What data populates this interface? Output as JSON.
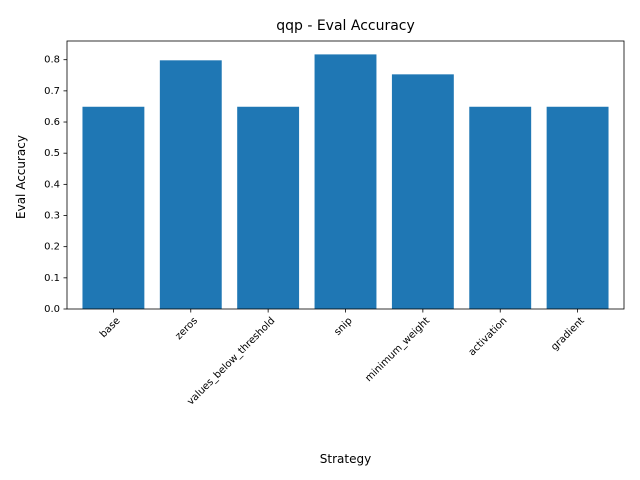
{
  "chart_data": {
    "type": "bar",
    "title": "qqp - Eval Accuracy",
    "xlabel": "Strategy",
    "ylabel": "Eval Accuracy",
    "categories": [
      "base",
      "zeros",
      "values_below_threshold",
      "snip",
      "minimum_weight",
      "activation",
      "gradient"
    ],
    "values": [
      0.649,
      0.798,
      0.649,
      0.817,
      0.753,
      0.649,
      0.649
    ],
    "ylim": [
      0,
      0.86
    ],
    "yticks": [
      0.0,
      0.1,
      0.2,
      0.3,
      0.4,
      0.5,
      0.6,
      0.7,
      0.8
    ],
    "ytick_labels": [
      "0.0",
      "0.1",
      "0.2",
      "0.3",
      "0.4",
      "0.5",
      "0.6",
      "0.7",
      "0.8"
    ],
    "xtick_rotation": 45,
    "grid": false,
    "bar_color": "#1f77b4"
  }
}
